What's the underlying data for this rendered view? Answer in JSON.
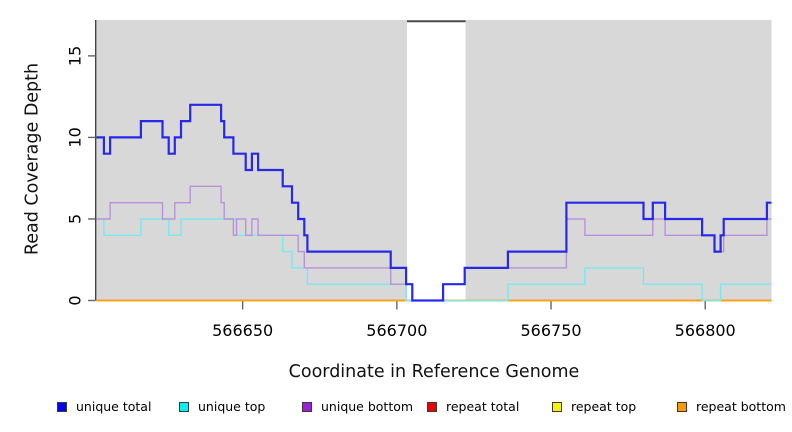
{
  "chart_data": {
    "type": "line",
    "subtype": "step-coverage",
    "title": "",
    "xlabel": "Coordinate in Reference Genome",
    "ylabel": "Read Coverage Depth",
    "xlim": [
      566602.6,
      566821.5
    ],
    "ylim": [
      0,
      17.2
    ],
    "x_ticks": [
      566650,
      566700,
      566750,
      566800
    ],
    "x_tick_labels": [
      "566650",
      "566700",
      "566750",
      "566800"
    ],
    "y_ticks": [
      0,
      5,
      10,
      15
    ],
    "y_tick_labels": [
      "0",
      "5",
      "10",
      "15"
    ],
    "grid": "off",
    "plot_bg": "#d8d8d8",
    "axis_color": "#444444",
    "tick_color": "#666666",
    "gap_region": {
      "start": 566703.3,
      "end": 566722.3,
      "fill": "#ffffff",
      "top_line_color": "#4a4a4a"
    },
    "series": [
      {
        "name": "repeat total",
        "color": "#e00000",
        "line_width": 1.2,
        "points": [
          [
            566602.6,
            0
          ]
        ]
      },
      {
        "name": "repeat top",
        "color": "#f0f000",
        "line_width": 1.2,
        "points": [
          [
            566602.6,
            0
          ]
        ]
      },
      {
        "name": "repeat bottom",
        "color": "#ff9d14",
        "line_width": 1.8,
        "points": [
          [
            566602.6,
            0
          ]
        ]
      },
      {
        "name": "unique top",
        "color": "#7ae8ee",
        "line_width": 1.4,
        "points": [
          [
            566602.6,
            5
          ],
          [
            566605,
            4
          ],
          [
            566617,
            5
          ],
          [
            566626,
            4
          ],
          [
            566630,
            5
          ],
          [
            566648,
            4
          ],
          [
            566663,
            3
          ],
          [
            566666,
            2
          ],
          [
            566671,
            1
          ],
          [
            566703,
            0
          ],
          [
            566736,
            1
          ],
          [
            566761,
            2
          ],
          [
            566780,
            1
          ],
          [
            566799,
            0
          ],
          [
            566805,
            1
          ]
        ]
      },
      {
        "name": "unique bottom",
        "color": "#b792da",
        "line_width": 1.4,
        "points": [
          [
            566602.6,
            5
          ],
          [
            566607,
            6
          ],
          [
            566624,
            5
          ],
          [
            566628,
            6
          ],
          [
            566633,
            7
          ],
          [
            566643,
            6
          ],
          [
            566644,
            5
          ],
          [
            566647,
            4
          ],
          [
            566648,
            5
          ],
          [
            566651,
            4
          ],
          [
            566653,
            5
          ],
          [
            566655,
            4
          ],
          [
            566668,
            3
          ],
          [
            566670,
            2
          ],
          [
            566698,
            1
          ],
          [
            566705,
            0
          ],
          [
            566715,
            1
          ],
          [
            566722,
            2
          ],
          [
            566755,
            5
          ],
          [
            566761,
            4
          ],
          [
            566783,
            5
          ],
          [
            566787,
            4
          ],
          [
            566803,
            3
          ],
          [
            566806,
            4
          ],
          [
            566820,
            5
          ]
        ]
      },
      {
        "name": "unique total",
        "color": "#2828e8",
        "line_width": 2.2,
        "points": [
          [
            566602.6,
            10
          ],
          [
            566605,
            9
          ],
          [
            566607,
            10
          ],
          [
            566617,
            11
          ],
          [
            566624,
            10
          ],
          [
            566626,
            9
          ],
          [
            566628,
            10
          ],
          [
            566630,
            11
          ],
          [
            566633,
            12
          ],
          [
            566643,
            11
          ],
          [
            566644,
            10
          ],
          [
            566647,
            9
          ],
          [
            566651,
            8
          ],
          [
            566653,
            9
          ],
          [
            566655,
            8
          ],
          [
            566663,
            7
          ],
          [
            566666,
            6
          ],
          [
            566668,
            5
          ],
          [
            566670,
            4
          ],
          [
            566671,
            3
          ],
          [
            566698,
            2
          ],
          [
            566703,
            1
          ],
          [
            566705,
            0
          ],
          [
            566715,
            1
          ],
          [
            566722,
            2
          ],
          [
            566736,
            3
          ],
          [
            566755,
            6
          ],
          [
            566780,
            5
          ],
          [
            566783,
            6
          ],
          [
            566787,
            5
          ],
          [
            566799,
            4
          ],
          [
            566803,
            3
          ],
          [
            566805,
            4
          ],
          [
            566806,
            5
          ],
          [
            566820,
            6
          ]
        ]
      }
    ],
    "legend": [
      {
        "label": "unique total",
        "swatch": "#0000f0"
      },
      {
        "label": "unique top",
        "swatch": "#00f0f0"
      },
      {
        "label": "unique bottom",
        "swatch": "#9b1fd6"
      },
      {
        "label": "repeat total",
        "swatch": "#e80000"
      },
      {
        "label": "repeat top",
        "swatch": "#f5f500"
      },
      {
        "label": "repeat bottom",
        "swatch": "#f59b00"
      }
    ],
    "legend_position": "bottom"
  }
}
